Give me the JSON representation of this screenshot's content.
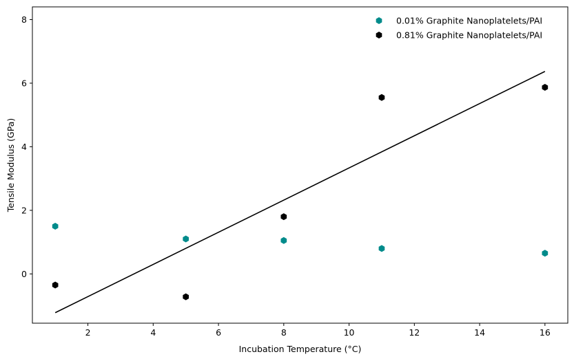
{
  "chart_data": {
    "type": "scatter",
    "title": "",
    "xlabel": "Incubation Temperature (°C)",
    "ylabel": "Tensile Modulus (GPa)",
    "xlim": [
      0.3,
      16.7
    ],
    "ylim": [
      -1.55,
      8.4
    ],
    "xticks": [
      2,
      4,
      6,
      8,
      10,
      12,
      14,
      16
    ],
    "yticks": [
      0,
      2,
      4,
      6,
      8
    ],
    "grid": false,
    "legend_position": "top-right",
    "series": [
      {
        "name": "0.01% Graphite Nanoplatelets/PAI",
        "color": "#008b8b",
        "marker": "hexagon",
        "x": [
          1,
          5,
          8,
          11,
          16
        ],
        "y": [
          1.5,
          1.1,
          1.05,
          0.8,
          0.65
        ]
      },
      {
        "name": "0.81% Graphite Nanoplatelets/PAI",
        "color": "#000000",
        "marker": "hexagon",
        "x": [
          1,
          5,
          8,
          11,
          16
        ],
        "y": [
          -0.35,
          -0.72,
          1.8,
          5.55,
          5.87
        ]
      }
    ],
    "trend_line": {
      "color": "#000000",
      "x": [
        1,
        16
      ],
      "y": [
        -1.22,
        6.37
      ]
    }
  }
}
